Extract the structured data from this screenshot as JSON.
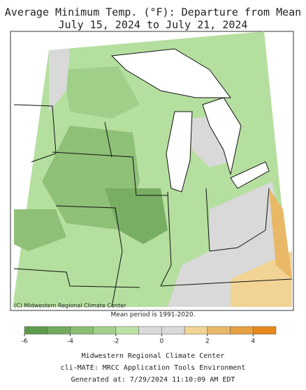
{
  "header": {
    "title": "Average Minimum Temp. (°F): Departure from Mean",
    "subtitle": "July 15, 2024 to July 21, 2024"
  },
  "map": {
    "credit": "(C) Midwestern Regional Climate Center",
    "note": "Mean period is 1991-2020."
  },
  "legend": {
    "bins": [
      -6,
      -5,
      -4,
      -3,
      -2,
      -1,
      0,
      1,
      2,
      3,
      4,
      5
    ],
    "colors": [
      "#5e9a4c",
      "#72ab5f",
      "#8abe73",
      "#a2cf8b",
      "#bce3a6",
      "#d9d9d9",
      "#d9d9d9",
      "#f1d394",
      "#e9b866",
      "#e8a040",
      "#e68a1c"
    ],
    "ticks": [
      -6,
      -4,
      -2,
      0,
      2,
      4
    ]
  },
  "footer": {
    "lines": [
      "Midwestern Regional Climate Center",
      "cli-MATE: MRCC Application Tools Environment",
      "Generated at: 7/29/2024 11:10:09 AM EDT"
    ]
  }
}
